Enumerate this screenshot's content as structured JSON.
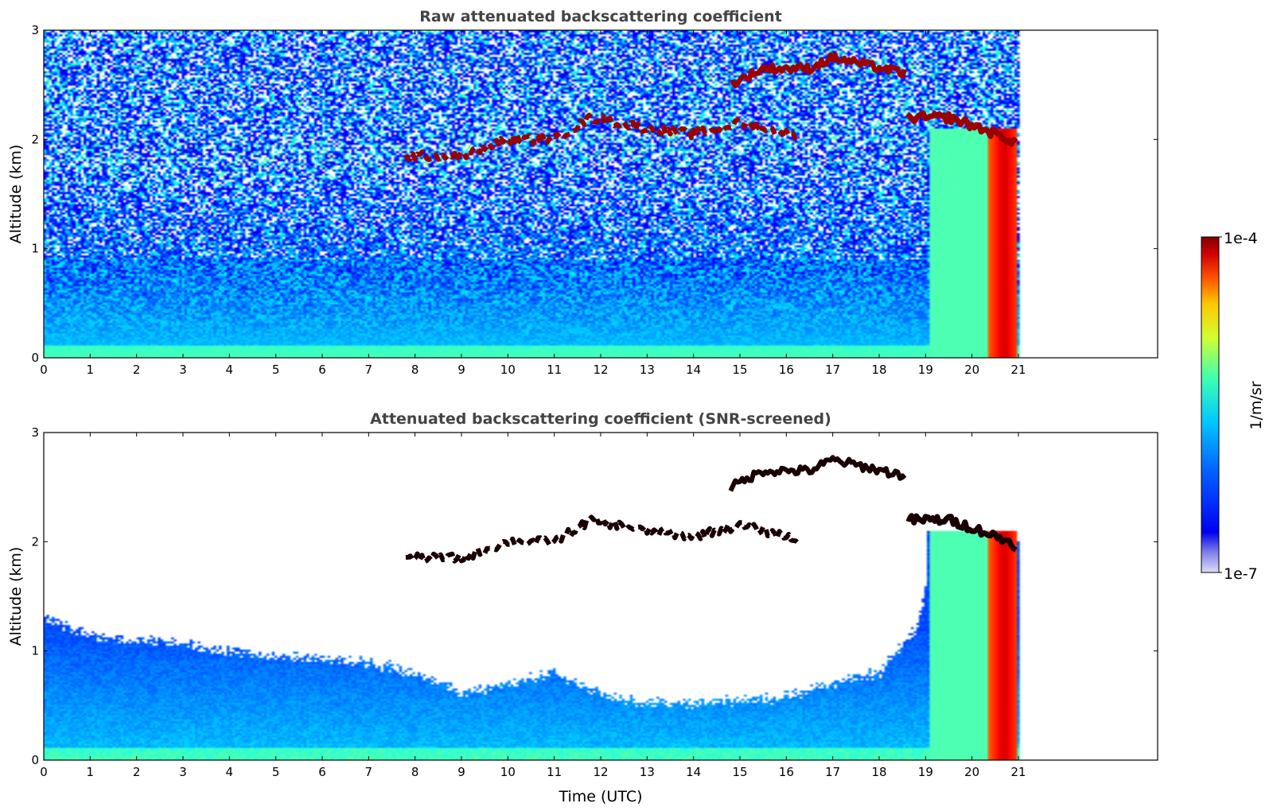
{
  "chart_data": [
    {
      "type": "heatmap",
      "title": "Raw attenuated backscattering coefficient",
      "xlabel": "",
      "ylabel": "Altitude (km)",
      "xlim": [
        0,
        24
      ],
      "ylim": [
        0,
        3
      ],
      "xticks": [
        0,
        1,
        2,
        3,
        4,
        5,
        6,
        7,
        8,
        9,
        10,
        11,
        12,
        13,
        14,
        15,
        16,
        17,
        18,
        19,
        20,
        21
      ],
      "yticks": [
        0,
        1,
        2,
        3
      ],
      "data_end_time": 21,
      "screened": false,
      "features": {
        "cloud_layer_altitude_km": [
          [
            7.8,
            1.85
          ],
          [
            9.0,
            1.85
          ],
          [
            10.0,
            2.0
          ],
          [
            11.0,
            2.0
          ],
          [
            11.8,
            2.2
          ],
          [
            13.0,
            2.1
          ],
          [
            14.0,
            2.05
          ],
          [
            15.0,
            2.15
          ],
          [
            16.0,
            2.05
          ],
          [
            16.3,
            2.0
          ]
        ],
        "upper_cloud_layer_altitude_km": [
          [
            14.8,
            2.5
          ],
          [
            15.5,
            2.65
          ],
          [
            16.5,
            2.65
          ],
          [
            17.0,
            2.75
          ],
          [
            18.6,
            2.6
          ]
        ],
        "descending_layer_altitude_km": [
          [
            18.6,
            2.2
          ],
          [
            19.5,
            2.2
          ],
          [
            20.2,
            2.1
          ],
          [
            20.8,
            2.0
          ],
          [
            21.0,
            1.95
          ]
        ],
        "boundary_layer_top_km": 1.0,
        "precipitation_times": [
          20.45,
          20.7,
          20.9
        ]
      }
    },
    {
      "type": "heatmap",
      "title": "Attenuated backscattering coefficient (SNR-screened)",
      "xlabel": "Time (UTC)",
      "ylabel": "Altitude (km)",
      "xlim": [
        0,
        24
      ],
      "ylim": [
        0,
        3
      ],
      "xticks": [
        0,
        1,
        2,
        3,
        4,
        5,
        6,
        7,
        8,
        9,
        10,
        11,
        12,
        13,
        14,
        15,
        16,
        17,
        18,
        19,
        20,
        21
      ],
      "yticks": [
        0,
        1,
        2,
        3
      ],
      "data_end_time": 21,
      "screened": true,
      "features": {
        "signal_top_km": [
          [
            0,
            1.3
          ],
          [
            1,
            1.15
          ],
          [
            2,
            1.1
          ],
          [
            3,
            1.05
          ],
          [
            4,
            1.0
          ],
          [
            5,
            0.95
          ],
          [
            6,
            0.92
          ],
          [
            7,
            0.9
          ],
          [
            8,
            0.8
          ],
          [
            9,
            0.62
          ],
          [
            10,
            0.7
          ],
          [
            11,
            0.8
          ],
          [
            12,
            0.6
          ],
          [
            13,
            0.52
          ],
          [
            14,
            0.52
          ],
          [
            15,
            0.55
          ],
          [
            16,
            0.58
          ],
          [
            17,
            0.7
          ],
          [
            18,
            0.8
          ],
          [
            18.8,
            1.2
          ],
          [
            19.2,
            1.9
          ],
          [
            21,
            2.0
          ]
        ]
      }
    }
  ],
  "colorbar": {
    "max_label": "1e-4",
    "min_label": "1e-7",
    "unit_label": "1/m/sr",
    "colormap": "jet"
  }
}
